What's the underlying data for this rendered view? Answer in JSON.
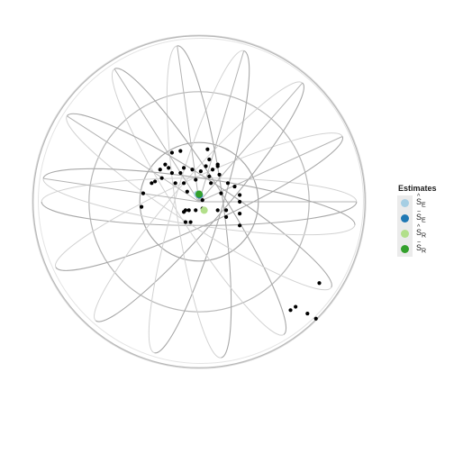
{
  "chart_data": {
    "type": "scatter",
    "projection": "stereographic sphere",
    "title": "",
    "grid": true,
    "legend_position": "right",
    "points": [
      [
        0.05,
        0.31
      ],
      [
        -0.11,
        0.3
      ],
      [
        -0.16,
        0.29
      ],
      [
        0.06,
        0.25
      ],
      [
        -0.2,
        0.22
      ],
      [
        0.11,
        0.22
      ],
      [
        0.11,
        0.21
      ],
      [
        0.04,
        0.21
      ],
      [
        -0.18,
        0.2
      ],
      [
        -0.09,
        0.2
      ],
      [
        -0.04,
        0.19
      ],
      [
        -0.23,
        0.19
      ],
      [
        0.08,
        0.19
      ],
      [
        0.01,
        0.18
      ],
      [
        -0.16,
        0.17
      ],
      [
        -0.11,
        0.17
      ],
      [
        0.12,
        0.16
      ],
      [
        0.06,
        0.15
      ],
      [
        -0.22,
        0.14
      ],
      [
        -0.02,
        0.13
      ],
      [
        -0.26,
        0.12
      ],
      [
        -0.28,
        0.11
      ],
      [
        0.17,
        0.11
      ],
      [
        -0.14,
        0.11
      ],
      [
        -0.09,
        0.11
      ],
      [
        0.07,
        0.11
      ],
      [
        0.21,
        0.09
      ],
      [
        -0.07,
        0.06
      ],
      [
        0.13,
        0.05
      ],
      [
        -0.33,
        0.05
      ],
      [
        0.24,
        0.04
      ],
      [
        0.24,
        0.0
      ],
      [
        0.02,
        0.01
      ],
      [
        -0.34,
        -0.03
      ],
      [
        0.16,
        -0.05
      ],
      [
        0.11,
        -0.05
      ],
      [
        0.24,
        -0.07
      ],
      [
        -0.09,
        -0.06
      ],
      [
        -0.06,
        -0.05
      ],
      [
        -0.02,
        -0.05
      ],
      [
        0.02,
        -0.04
      ],
      [
        -0.08,
        -0.05
      ],
      [
        0.16,
        -0.09
      ],
      [
        -0.08,
        -0.12
      ],
      [
        -0.05,
        -0.12
      ],
      [
        0.24,
        -0.14
      ],
      [
        0.71,
        -0.48
      ],
      [
        0.57,
        -0.62
      ],
      [
        0.64,
        -0.66
      ],
      [
        0.54,
        -0.64
      ],
      [
        0.69,
        -0.69
      ]
    ],
    "estimates": [
      {
        "name": "Ŝ_E",
        "x": -0.01,
        "y": 0.045
      },
      {
        "name": "S̃_E",
        "x": 0.002,
        "y": 0.04
      },
      {
        "name": "Ŝ_R",
        "x": 0.03,
        "y": -0.05
      },
      {
        "name": "S̃_R",
        "x": 0.0,
        "y": 0.045
      }
    ],
    "grid_lines": {
      "latitude_rings": [
        0.35,
        0.65,
        0.98
      ],
      "meridian_angles_deg": [
        0,
        24.5,
        49,
        73.5,
        98,
        122.5,
        147,
        171.5
      ]
    }
  },
  "legend": {
    "title": "Estimates",
    "items": [
      {
        "main": "S",
        "accent": "^",
        "sub": "E",
        "color": "#a6cee3"
      },
      {
        "main": "S",
        "accent": "~",
        "sub": "E",
        "color": "#1f78b4"
      },
      {
        "main": "S",
        "accent": "^",
        "sub": "R",
        "color": "#b2df8a"
      },
      {
        "main": "S",
        "accent": "~",
        "sub": "R",
        "color": "#33a02c"
      }
    ]
  }
}
